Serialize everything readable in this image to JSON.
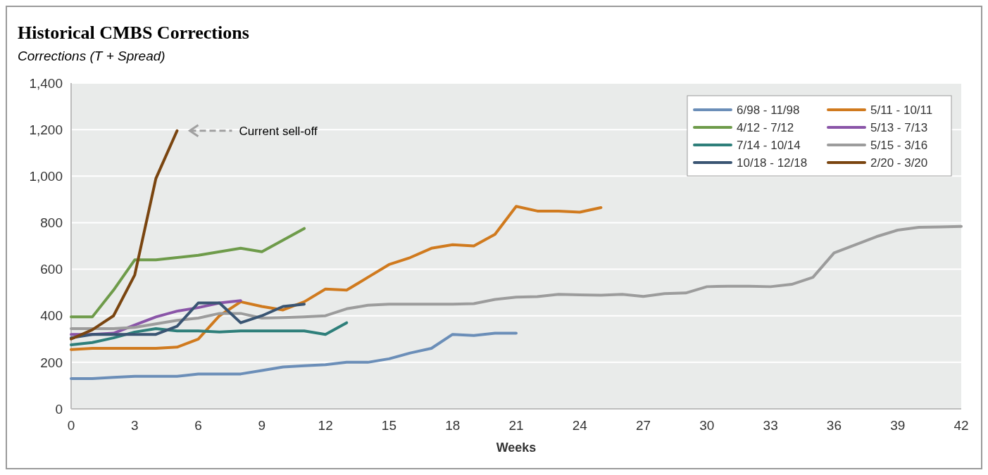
{
  "chart_data": {
    "type": "line",
    "title": "Historical CMBS Corrections",
    "subtitle": "Corrections (T + Spread)",
    "xlabel": "Weeks",
    "xlim": [
      0,
      42
    ],
    "xticks": [
      0,
      3,
      6,
      9,
      12,
      15,
      18,
      21,
      24,
      27,
      30,
      33,
      36,
      39,
      42
    ],
    "ylim": [
      0,
      1400
    ],
    "yticks": [
      {
        "value": 0,
        "label": "0"
      },
      {
        "value": 200,
        "label": "200"
      },
      {
        "value": 400,
        "label": "400"
      },
      {
        "value": 600,
        "label": "600"
      },
      {
        "value": 800,
        "label": "800"
      },
      {
        "value": 1000,
        "label": "1,000"
      },
      {
        "value": 1200,
        "label": "1,200"
      },
      {
        "value": 1400,
        "label": "1,400"
      }
    ],
    "grid": "y",
    "legend": "top right",
    "line_style": "solid",
    "marker": "none",
    "annotations": [
      "Current sell-off"
    ],
    "series": [
      {
        "name": "6/98 - 11/98",
        "color": "#6b8eb8",
        "x": [
          0,
          1,
          2,
          3,
          4,
          5,
          6,
          7,
          8,
          9,
          10,
          11,
          12,
          13,
          14,
          15,
          16,
          17,
          18,
          19,
          20,
          21
        ],
        "values": [
          130,
          130,
          135,
          140,
          140,
          140,
          150,
          150,
          150,
          165,
          180,
          185,
          190,
          200,
          200,
          215,
          240,
          260,
          320,
          315,
          325,
          325
        ]
      },
      {
        "name": "5/11 - 10/11",
        "color": "#d07a1e",
        "x": [
          0,
          1,
          2,
          3,
          4,
          5,
          6,
          7,
          8,
          9,
          10,
          11,
          12,
          13,
          14,
          15,
          16,
          17,
          18,
          19,
          20,
          21,
          22,
          23,
          24,
          25
        ],
        "values": [
          255,
          260,
          260,
          260,
          260,
          265,
          300,
          400,
          460,
          440,
          425,
          460,
          515,
          510,
          565,
          620,
          650,
          690,
          705,
          700,
          750,
          870,
          850,
          850,
          845,
          865
        ]
      },
      {
        "name": "4/12 - 7/12",
        "color": "#6e9b4a",
        "x": [
          0,
          1,
          2,
          3,
          4,
          5,
          6,
          7,
          8,
          9,
          10,
          11
        ],
        "values": [
          395,
          395,
          510,
          640,
          640,
          650,
          660,
          675,
          690,
          675,
          725,
          775
        ]
      },
      {
        "name": "5/13 - 7/13",
        "color": "#8a55a8",
        "x": [
          0,
          1,
          2,
          3,
          4,
          5,
          6,
          7,
          8
        ],
        "values": [
          320,
          320,
          325,
          360,
          395,
          420,
          435,
          455,
          465
        ]
      },
      {
        "name": "7/14 - 10/14",
        "color": "#2e7f7a",
        "x": [
          0,
          1,
          2,
          3,
          4,
          5,
          6,
          7,
          8,
          9,
          10,
          11,
          12,
          13
        ],
        "values": [
          275,
          285,
          305,
          330,
          345,
          335,
          335,
          330,
          335,
          335,
          335,
          335,
          320,
          370
        ]
      },
      {
        "name": "5/15 - 3/16",
        "color": "#9c9c9c",
        "x": [
          0,
          1,
          2,
          3,
          4,
          5,
          6,
          7,
          8,
          9,
          10,
          11,
          12,
          13,
          14,
          15,
          16,
          17,
          18,
          19,
          20,
          21,
          22,
          23,
          24,
          25,
          26,
          27,
          28,
          29,
          30,
          31,
          32,
          33,
          34,
          35,
          36,
          37,
          38,
          39,
          40,
          41,
          42
        ],
        "values": [
          345,
          345,
          345,
          350,
          365,
          380,
          390,
          410,
          410,
          390,
          392,
          395,
          400,
          430,
          445,
          450,
          450,
          450,
          450,
          452,
          470,
          480,
          482,
          492,
          490,
          488,
          492,
          483,
          495,
          498,
          525,
          527,
          527,
          525,
          535,
          565,
          670,
          705,
          740,
          768,
          780,
          782,
          784
        ]
      },
      {
        "name": "10/18 - 12/18",
        "color": "#3a5573",
        "x": [
          0,
          1,
          2,
          3,
          4,
          5,
          6,
          7,
          8,
          9,
          10,
          11
        ],
        "values": [
          305,
          320,
          320,
          320,
          320,
          355,
          455,
          455,
          370,
          400,
          440,
          450
        ]
      },
      {
        "name": "2/20 - 3/20",
        "color": "#7a4510",
        "x": [
          0,
          1,
          2,
          3,
          4,
          5
        ],
        "values": [
          300,
          340,
          400,
          575,
          990,
          1195
        ]
      }
    ]
  }
}
